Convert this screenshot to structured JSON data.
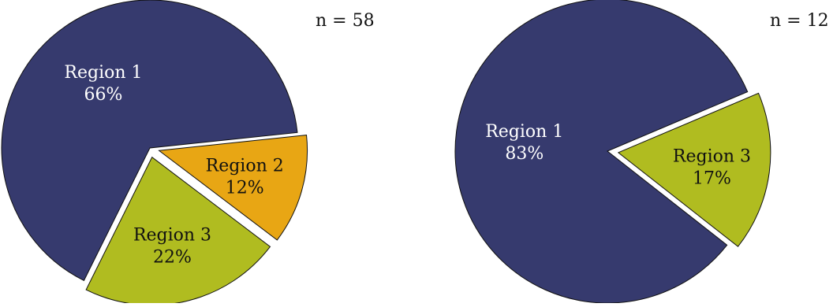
{
  "colors": {
    "region_1": "#363a6e",
    "region_2": "#e8a614",
    "region_3": "#b0bc20",
    "edge": "#111111"
  },
  "chart_data": [
    {
      "type": "pie",
      "sample_label": "n = 58",
      "slices": [
        {
          "name": "Region 1",
          "label": "66%",
          "value": 66
        },
        {
          "name": "Region 2",
          "label": "12%",
          "value": 12
        },
        {
          "name": "Region 3",
          "label": "22%",
          "value": 22
        }
      ],
      "exploded": [
        "Region 2",
        "Region 3"
      ]
    },
    {
      "type": "pie",
      "sample_label": "n = 12",
      "slices": [
        {
          "name": "Region 1",
          "label": "83%",
          "value": 83
        },
        {
          "name": "Region 3",
          "label": "17%",
          "value": 17
        }
      ],
      "exploded": [
        "Region 3"
      ]
    }
  ]
}
